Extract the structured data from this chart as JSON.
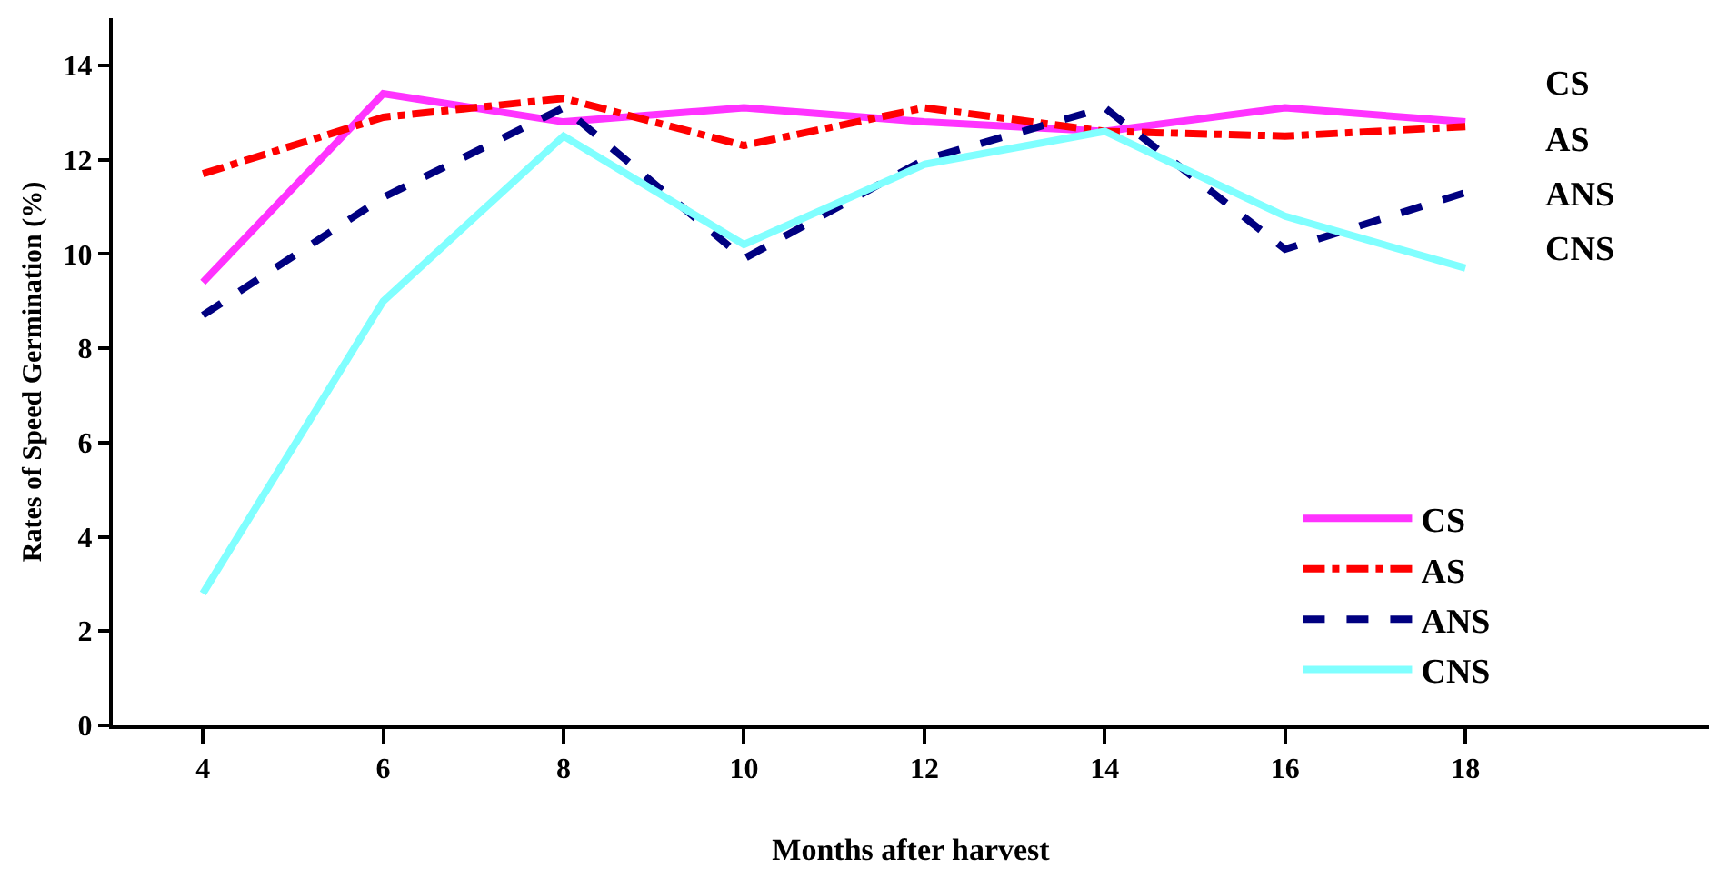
{
  "chart_data": {
    "type": "line",
    "xlabel": "Months after harvest",
    "ylabel": "Rates of Speed Germination (%)",
    "x": [
      4,
      6,
      8,
      10,
      12,
      14,
      16,
      18
    ],
    "xlim": [
      3,
      20.7
    ],
    "xticks": [
      4,
      6,
      8,
      10,
      12,
      14,
      16,
      18
    ],
    "ylim": [
      0,
      15
    ],
    "yticks": [
      0,
      2,
      4,
      6,
      8,
      10,
      12,
      14
    ],
    "legend": "bottom right",
    "marker": "none",
    "annotations": [
      "CS",
      "AS",
      "ANS",
      "CNS"
    ],
    "series": [
      {
        "name": "CS",
        "color": "#ff33ff",
        "line_style": "solid",
        "values": [
          9.4,
          13.4,
          12.8,
          13.1,
          12.8,
          12.6,
          13.1,
          12.8
        ]
      },
      {
        "name": "AS",
        "color": "#ff0000",
        "line_style": "dashed",
        "values": [
          11.7,
          12.9,
          13.3,
          12.3,
          13.1,
          12.6,
          12.5,
          12.7
        ]
      },
      {
        "name": "ANS",
        "color": "#000080",
        "line_style": "dotted",
        "values": [
          8.7,
          11.2,
          13.1,
          9.9,
          12.0,
          13.1,
          10.1,
          11.3
        ]
      },
      {
        "name": "CNS",
        "color": "#80ffff",
        "line_style": "solid",
        "values": [
          2.8,
          9.0,
          12.5,
          10.2,
          11.9,
          12.6,
          10.8,
          9.7
        ]
      }
    ]
  }
}
